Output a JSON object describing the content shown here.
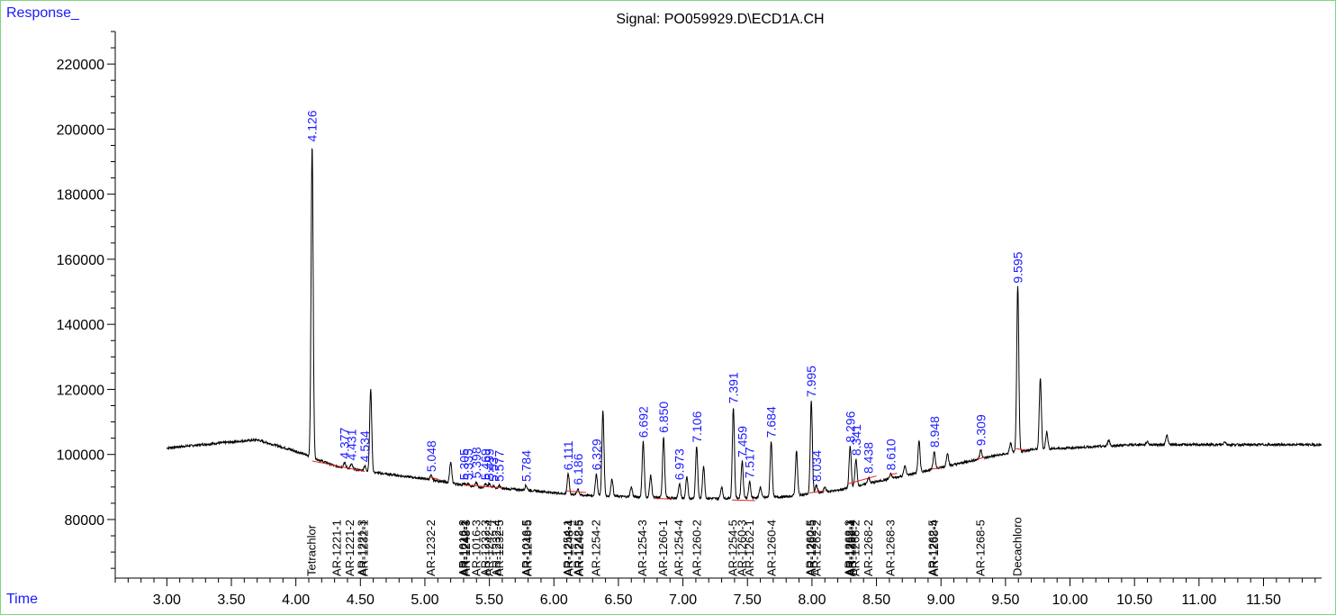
{
  "chart_data": {
    "type": "line",
    "title": "Signal: PO059929.D\\ECD1A.CH",
    "ylabel": "Response_",
    "xlabel": "Time",
    "xlim": [
      2.6,
      11.95
    ],
    "ylim": [
      62000,
      230000
    ],
    "x_ticks": [
      "3.00",
      "3.50",
      "4.00",
      "4.50",
      "5.00",
      "5.50",
      "6.00",
      "6.50",
      "7.00",
      "7.50",
      "8.00",
      "8.50",
      "9.00",
      "9.50",
      "10.00",
      "10.50",
      "11.00",
      "11.50"
    ],
    "y_ticks": [
      "80000",
      "100000",
      "120000",
      "140000",
      "160000",
      "180000",
      "200000",
      "220000"
    ],
    "baseline_points": [
      [
        3.0,
        102000
      ],
      [
        3.4,
        103500
      ],
      [
        3.7,
        104500
      ],
      [
        4.0,
        101000
      ],
      [
        4.3,
        96500
      ],
      [
        4.6,
        94500
      ],
      [
        5.0,
        92500
      ],
      [
        5.4,
        90000
      ],
      [
        5.8,
        89000
      ],
      [
        6.2,
        87500
      ],
      [
        6.6,
        87000
      ],
      [
        7.0,
        86500
      ],
      [
        7.4,
        86500
      ],
      [
        7.8,
        87000
      ],
      [
        8.2,
        89000
      ],
      [
        8.6,
        92500
      ],
      [
        9.0,
        96000
      ],
      [
        9.4,
        99500
      ],
      [
        9.7,
        101500
      ],
      [
        10.0,
        102000
      ],
      [
        10.5,
        103000
      ],
      [
        11.0,
        103000
      ],
      [
        11.5,
        103000
      ],
      [
        11.95,
        103000
      ]
    ],
    "peaks": [
      {
        "x": 4.126,
        "y": 195000,
        "label": "4.126"
      },
      {
        "x": 4.377,
        "y": 97500,
        "label": "4.377"
      },
      {
        "x": 4.431,
        "y": 97000,
        "label": "4.431"
      },
      {
        "x": 4.534,
        "y": 96500,
        "label": "4.534"
      },
      {
        "x": 4.58,
        "y": 120000,
        "label": ""
      },
      {
        "x": 5.048,
        "y": 93500,
        "label": "5.048"
      },
      {
        "x": 5.2,
        "y": 97500,
        "label": ""
      },
      {
        "x": 5.305,
        "y": 91000,
        "label": "5.305"
      },
      {
        "x": 5.335,
        "y": 91000,
        "label": "5.335"
      },
      {
        "x": 5.398,
        "y": 91500,
        "label": "5.398"
      },
      {
        "x": 5.469,
        "y": 91000,
        "label": "5.469"
      },
      {
        "x": 5.499,
        "y": 91000,
        "label": "5.499"
      },
      {
        "x": 5.53,
        "y": 90500,
        "label": "5.53"
      },
      {
        "x": 5.577,
        "y": 90500,
        "label": "5.577"
      },
      {
        "x": 5.784,
        "y": 90500,
        "label": "5.784"
      },
      {
        "x": 6.111,
        "y": 94000,
        "label": "6.111"
      },
      {
        "x": 6.186,
        "y": 89500,
        "label": "6.186"
      },
      {
        "x": 6.329,
        "y": 94000,
        "label": "6.329"
      },
      {
        "x": 6.38,
        "y": 113500,
        "label": ""
      },
      {
        "x": 6.45,
        "y": 92500,
        "label": ""
      },
      {
        "x": 6.6,
        "y": 90000,
        "label": ""
      },
      {
        "x": 6.692,
        "y": 104000,
        "label": "6.692"
      },
      {
        "x": 6.75,
        "y": 93500,
        "label": ""
      },
      {
        "x": 6.85,
        "y": 105500,
        "label": "6.850"
      },
      {
        "x": 6.973,
        "y": 91000,
        "label": "6.973"
      },
      {
        "x": 7.03,
        "y": 93000,
        "label": ""
      },
      {
        "x": 7.106,
        "y": 102500,
        "label": "7.106"
      },
      {
        "x": 7.16,
        "y": 96500,
        "label": ""
      },
      {
        "x": 7.3,
        "y": 90000,
        "label": ""
      },
      {
        "x": 7.391,
        "y": 114500,
        "label": "7.391"
      },
      {
        "x": 7.459,
        "y": 98000,
        "label": "7.459"
      },
      {
        "x": 7.517,
        "y": 91500,
        "label": "7.517"
      },
      {
        "x": 7.6,
        "y": 90000,
        "label": ""
      },
      {
        "x": 7.684,
        "y": 104000,
        "label": "7.684"
      },
      {
        "x": 7.88,
        "y": 101000,
        "label": ""
      },
      {
        "x": 7.995,
        "y": 116500,
        "label": "7.995"
      },
      {
        "x": 8.034,
        "y": 90500,
        "label": "8.034"
      },
      {
        "x": 8.1,
        "y": 90000,
        "label": ""
      },
      {
        "x": 8.296,
        "y": 102500,
        "label": "8.296"
      },
      {
        "x": 8.341,
        "y": 98500,
        "label": "8.341"
      },
      {
        "x": 8.438,
        "y": 93000,
        "label": "8.438"
      },
      {
        "x": 8.61,
        "y": 94000,
        "label": "8.610"
      },
      {
        "x": 8.72,
        "y": 96500,
        "label": ""
      },
      {
        "x": 8.83,
        "y": 104000,
        "label": ""
      },
      {
        "x": 8.948,
        "y": 101000,
        "label": "8.948"
      },
      {
        "x": 9.05,
        "y": 100500,
        "label": ""
      },
      {
        "x": 9.309,
        "y": 101500,
        "label": "9.309"
      },
      {
        "x": 9.54,
        "y": 103500,
        "label": ""
      },
      {
        "x": 9.595,
        "y": 151500,
        "label": "9.595"
      },
      {
        "x": 9.77,
        "y": 123500,
        "label": ""
      },
      {
        "x": 9.82,
        "y": 107000,
        "label": ""
      },
      {
        "x": 10.3,
        "y": 104500,
        "label": ""
      },
      {
        "x": 10.6,
        "y": 104000,
        "label": ""
      },
      {
        "x": 10.75,
        "y": 106000,
        "label": ""
      },
      {
        "x": 11.2,
        "y": 104000,
        "label": ""
      }
    ],
    "integration_segments": [
      [
        4.126,
        98000,
        4.534,
        94800
      ],
      [
        5.04,
        93000,
        5.11,
        92300
      ],
      [
        5.31,
        90600,
        5.6,
        89700
      ],
      [
        6.1,
        88800,
        6.25,
        88300
      ],
      [
        6.78,
        86500,
        6.92,
        86300
      ],
      [
        7.38,
        86000,
        7.56,
        85800
      ],
      [
        7.98,
        88200,
        8.1,
        88800
      ],
      [
        8.28,
        91000,
        8.5,
        93400
      ],
      [
        8.6,
        93800,
        8.66,
        94200
      ],
      [
        8.93,
        95500,
        9.0,
        96000
      ],
      [
        9.28,
        98500,
        9.34,
        99200
      ],
      [
        9.58,
        101800,
        9.66,
        101300
      ]
    ],
    "compound_labels": [
      {
        "x": 4.126,
        "text": "Tetrachlor"
      },
      {
        "x": 4.32,
        "text": "AR-1221-1"
      },
      {
        "x": 4.42,
        "text": "AR-1221-2"
      },
      {
        "x": 4.515,
        "text": "AR-1221-3"
      },
      {
        "x": 4.53,
        "text": "AR-1232-1"
      },
      {
        "x": 5.05,
        "text": "AR-1232-2"
      },
      {
        "x": 5.3,
        "text": "AR-1016-2"
      },
      {
        "x": 5.31,
        "text": "AR-1242-1"
      },
      {
        "x": 5.32,
        "text": "AR-1248-3"
      },
      {
        "x": 5.4,
        "text": "AR-1016-3"
      },
      {
        "x": 5.47,
        "text": "AR-1232-3"
      },
      {
        "x": 5.5,
        "text": "AR-1242-4"
      },
      {
        "x": 5.56,
        "text": "AR-1232-4"
      },
      {
        "x": 5.58,
        "text": "AR-1232-5"
      },
      {
        "x": 5.79,
        "text": "AR-1016-5"
      },
      {
        "x": 5.8,
        "text": "AR-1248-5"
      },
      {
        "x": 6.11,
        "text": "AR-1254-1"
      },
      {
        "x": 6.12,
        "text": "AR-1248-4"
      },
      {
        "x": 6.19,
        "text": "AR-1242-5"
      },
      {
        "x": 6.2,
        "text": "AR-1248-5"
      },
      {
        "x": 6.33,
        "text": "AR-1254-2"
      },
      {
        "x": 6.69,
        "text": "AR-1254-3"
      },
      {
        "x": 6.85,
        "text": "AR-1260-1"
      },
      {
        "x": 6.97,
        "text": "AR-1254-4"
      },
      {
        "x": 7.11,
        "text": "AR-1260-2"
      },
      {
        "x": 7.39,
        "text": "AR-1254-5"
      },
      {
        "x": 7.46,
        "text": "AR-1260-3"
      },
      {
        "x": 7.52,
        "text": "AR-1262-1"
      },
      {
        "x": 7.69,
        "text": "AR-1260-4"
      },
      {
        "x": 7.99,
        "text": "AR-1260-5"
      },
      {
        "x": 8.0,
        "text": "AR-1262-5"
      },
      {
        "x": 8.04,
        "text": "AR-1262-2"
      },
      {
        "x": 8.29,
        "text": "AR-1262-3"
      },
      {
        "x": 8.3,
        "text": "AR-1268-1"
      },
      {
        "x": 8.31,
        "text": "AR-1262-4"
      },
      {
        "x": 8.34,
        "text": "AR-1268-2"
      },
      {
        "x": 8.44,
        "text": "AR-1268-2"
      },
      {
        "x": 8.61,
        "text": "AR-1268-3"
      },
      {
        "x": 8.94,
        "text": "AR-1262-5"
      },
      {
        "x": 8.95,
        "text": "AR-1268-4"
      },
      {
        "x": 9.31,
        "text": "AR-1268-5"
      },
      {
        "x": 9.595,
        "text": "Decachloro"
      }
    ],
    "colors": {
      "trace": "#000000",
      "peak_label": "#1a1aff",
      "integration": "#e02020",
      "axis": "#000000",
      "corner_text": "#1a1aff",
      "frame": "#7fd67f"
    },
    "grid": false,
    "legend": "none"
  }
}
